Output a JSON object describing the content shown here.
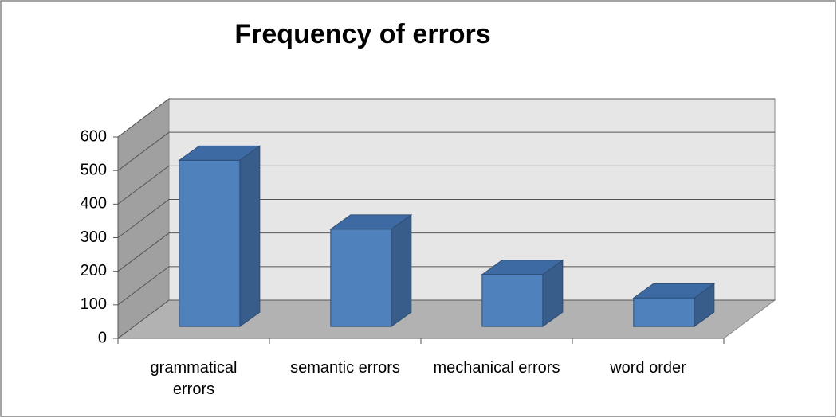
{
  "chart_data": {
    "type": "bar3d",
    "title": "Frequency of errors",
    "categories": [
      "grammatical errors",
      "semantic errors",
      "mechanical errors",
      "word order"
    ],
    "values": [
      495,
      290,
      155,
      85
    ],
    "color": "#4f81bd",
    "ylim": [
      0,
      600
    ],
    "yticks": [
      0,
      100,
      200,
      300,
      400,
      500,
      600
    ],
    "grid": true
  }
}
